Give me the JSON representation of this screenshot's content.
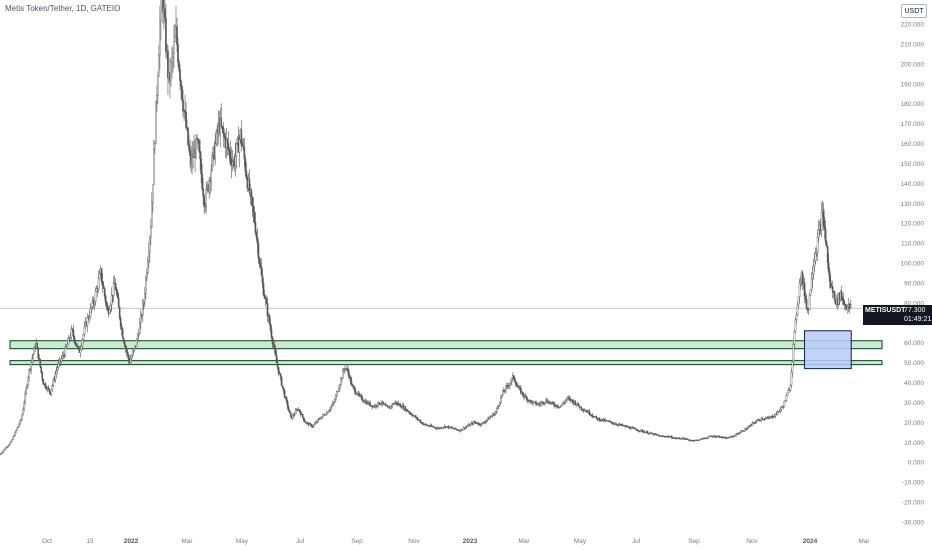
{
  "header": {
    "title": "Metis Token/Tether, 1D, GATEIO",
    "currency_button": "USDT"
  },
  "price_tag": {
    "symbol": "METISUSDT",
    "price": "77.300",
    "countdown": "01:49:21"
  },
  "colors": {
    "candles": "#555555",
    "zone_fill": "#c8ebd2",
    "zone_border": "#0b3d1d",
    "highlight_fill": "#b7cbfa",
    "highlight_border": "#0b1f4a",
    "axis_text": "#787b86",
    "last_price_line": "#b2b5be"
  },
  "chart_data": {
    "type": "candlestick",
    "title": "Metis Token/Tether, 1D, GATEIO",
    "y_axis": {
      "ticks": [
        "220.000",
        "210.000",
        "200.000",
        "190.000",
        "180.000",
        "170.000",
        "160.000",
        "150.000",
        "140.000",
        "130.000",
        "120.000",
        "110.000",
        "100.000",
        "90.000",
        "80.000",
        "70.000",
        "60.000",
        "50.000",
        "40.000",
        "30.000",
        "20.000",
        "10.000",
        "0.000",
        "-10.000",
        "-20.000",
        "-30.000"
      ],
      "tick_values": [
        220,
        210,
        200,
        190,
        180,
        170,
        160,
        150,
        140,
        130,
        120,
        110,
        100,
        90,
        80,
        70,
        60,
        50,
        40,
        30,
        20,
        10,
        0,
        -10,
        -20,
        -30
      ],
      "range": [
        -30,
        225
      ]
    },
    "x_axis": {
      "ticks": [
        "Oct",
        "15",
        "2022",
        "Mar",
        "May",
        "Jul",
        "Sep",
        "Nov",
        "2023",
        "Mar",
        "May",
        "Jul",
        "Sep",
        "Nov",
        "2024",
        "Mar"
      ],
      "bold_ticks": [
        "2022",
        "2023",
        "2024"
      ]
    },
    "price_path": [
      [
        0,
        4
      ],
      [
        3,
        10
      ],
      [
        6,
        22
      ],
      [
        8,
        45
      ],
      [
        10,
        60
      ],
      [
        12,
        40
      ],
      [
        14,
        35
      ],
      [
        16,
        48
      ],
      [
        18,
        55
      ],
      [
        20,
        66
      ],
      [
        22,
        55
      ],
      [
        24,
        70
      ],
      [
        26,
        80
      ],
      [
        28,
        95
      ],
      [
        30,
        75
      ],
      [
        32,
        90
      ],
      [
        34,
        65
      ],
      [
        36,
        50
      ],
      [
        38,
        60
      ],
      [
        40,
        80
      ],
      [
        42,
        120
      ],
      [
        44,
        200
      ],
      [
        45,
        240
      ],
      [
        47,
        190
      ],
      [
        49,
        215
      ],
      [
        51,
        180
      ],
      [
        53,
        150
      ],
      [
        55,
        160
      ],
      [
        57,
        130
      ],
      [
        59,
        150
      ],
      [
        61,
        170
      ],
      [
        63,
        160
      ],
      [
        65,
        150
      ],
      [
        67,
        165
      ],
      [
        69,
        140
      ],
      [
        71,
        120
      ],
      [
        73,
        90
      ],
      [
        75,
        70
      ],
      [
        77,
        50
      ],
      [
        79,
        35
      ],
      [
        81,
        22
      ],
      [
        83,
        27
      ],
      [
        85,
        20
      ],
      [
        87,
        18
      ],
      [
        89,
        22
      ],
      [
        91,
        25
      ],
      [
        93,
        30
      ],
      [
        95,
        42
      ],
      [
        96,
        48
      ],
      [
        97,
        45
      ],
      [
        98,
        38
      ],
      [
        100,
        33
      ],
      [
        102,
        30
      ],
      [
        104,
        28
      ],
      [
        106,
        30
      ],
      [
        108,
        27
      ],
      [
        110,
        30
      ],
      [
        112,
        28
      ],
      [
        114,
        25
      ],
      [
        116,
        22
      ],
      [
        118,
        19
      ],
      [
        120,
        18
      ],
      [
        122,
        17
      ],
      [
        124,
        18
      ],
      [
        126,
        17
      ],
      [
        128,
        16
      ],
      [
        130,
        18
      ],
      [
        132,
        20
      ],
      [
        134,
        19
      ],
      [
        136,
        22
      ],
      [
        138,
        25
      ],
      [
        140,
        35
      ],
      [
        142,
        40
      ],
      [
        143,
        43
      ],
      [
        144,
        38
      ],
      [
        146,
        33
      ],
      [
        148,
        30
      ],
      [
        150,
        29
      ],
      [
        152,
        31
      ],
      [
        154,
        29
      ],
      [
        156,
        28
      ],
      [
        158,
        32
      ],
      [
        160,
        30
      ],
      [
        162,
        27
      ],
      [
        164,
        25
      ],
      [
        166,
        22
      ],
      [
        168,
        21
      ],
      [
        170,
        20
      ],
      [
        172,
        19
      ],
      [
        174,
        18
      ],
      [
        176,
        17
      ],
      [
        178,
        16
      ],
      [
        180,
        15
      ],
      [
        182,
        14
      ],
      [
        184,
        13
      ],
      [
        186,
        13
      ],
      [
        188,
        12
      ],
      [
        190,
        12
      ],
      [
        192,
        11
      ],
      [
        194,
        11
      ],
      [
        196,
        12
      ],
      [
        198,
        13
      ],
      [
        200,
        13
      ],
      [
        202,
        12
      ],
      [
        204,
        13
      ],
      [
        206,
        15
      ],
      [
        208,
        17
      ],
      [
        210,
        20
      ],
      [
        212,
        22
      ],
      [
        214,
        22
      ],
      [
        216,
        24
      ],
      [
        218,
        28
      ],
      [
        220,
        38
      ],
      [
        221,
        60
      ],
      [
        222,
        80
      ],
      [
        223,
        95
      ],
      [
        224,
        85
      ],
      [
        225,
        75
      ],
      [
        226,
        95
      ],
      [
        227,
        105
      ],
      [
        228,
        115
      ],
      [
        229,
        125
      ],
      [
        230,
        110
      ],
      [
        231,
        90
      ],
      [
        232,
        85
      ],
      [
        233,
        80
      ],
      [
        234,
        85
      ],
      [
        235,
        80
      ],
      [
        236,
        78
      ],
      [
        237,
        77.3
      ]
    ],
    "path_x_range": [
      0,
      240
    ],
    "last_price": 77.3,
    "zones": [
      {
        "low": 57,
        "high": 61
      },
      {
        "low": 49,
        "high": 51
      }
    ],
    "highlight_box": {
      "low": 47,
      "high": 66,
      "x_start": 224,
      "x_end": 237
    },
    "grid": false,
    "legend": "none"
  }
}
